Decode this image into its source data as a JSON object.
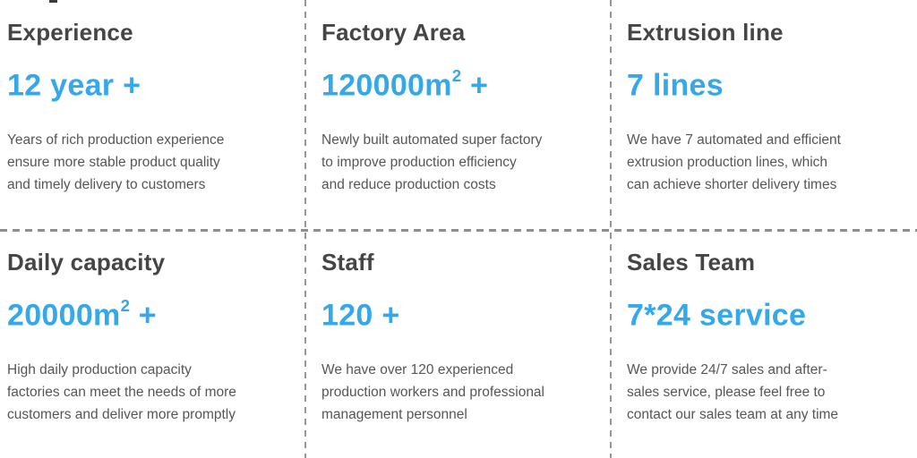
{
  "colors": {
    "accent_blue": "#35a8e9",
    "title_gray": "#454545",
    "body_gray": "#565656",
    "divider_gray": "#979797",
    "background": "#ffffff"
  },
  "cards": [
    {
      "title": "Experience",
      "value": "12 year +",
      "value_sup": "",
      "value_suffix": "",
      "description": "Years of rich production experience\nensure more stable product quality\nand timely delivery to customers"
    },
    {
      "title": "Factory Area",
      "value": "120000m",
      "value_sup": "2",
      "value_suffix": " +",
      "description": "Newly built automated super factory\nto improve production efficiency\nand reduce production costs"
    },
    {
      "title": "Extrusion line",
      "value": "7 lines",
      "value_sup": "",
      "value_suffix": "",
      "description": "We have 7 automated and efficient\nextrusion production lines, which\ncan achieve shorter delivery times"
    },
    {
      "title": "Daily capacity",
      "value": "20000m",
      "value_sup": "2",
      "value_suffix": " +",
      "description": "High daily production capacity\nfactories can meet the needs of more\ncustomers and deliver more promptly"
    },
    {
      "title": "Staff",
      "value": "120 +",
      "value_sup": "",
      "value_suffix": "",
      "description": "We have over 120 experienced\nproduction workers and professional\nmanagement personnel"
    },
    {
      "title": "Sales Team",
      "value": "7*24 service",
      "value_sup": "",
      "value_suffix": "",
      "description": "We provide 24/7 sales and after-\nsales service, please feel free to\ncontact our sales team at any time"
    }
  ]
}
